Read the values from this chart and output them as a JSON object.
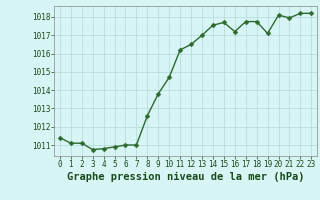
{
  "x": [
    0,
    1,
    2,
    3,
    4,
    5,
    6,
    7,
    8,
    9,
    10,
    11,
    12,
    13,
    14,
    15,
    16,
    17,
    18,
    19,
    20,
    21,
    22,
    23
  ],
  "y": [
    1011.4,
    1011.1,
    1011.1,
    1010.75,
    1010.8,
    1010.9,
    1011.0,
    1011.0,
    1012.6,
    1013.8,
    1014.7,
    1016.2,
    1016.5,
    1017.0,
    1017.55,
    1017.7,
    1017.2,
    1017.75,
    1017.75,
    1017.1,
    1018.1,
    1017.95,
    1018.2,
    1018.2
  ],
  "line_color": "#2d6a2d",
  "marker_color": "#2d6a2d",
  "background_color": "#d8f5f5",
  "grid_color": "#b8dede",
  "xlabel": "Graphe pression niveau de la mer (hPa)",
  "ylim": [
    1010.4,
    1018.6
  ],
  "xlim": [
    -0.5,
    23.5
  ],
  "yticks": [
    1011,
    1012,
    1013,
    1014,
    1015,
    1016,
    1017,
    1018
  ],
  "xticks": [
    0,
    1,
    2,
    3,
    4,
    5,
    6,
    7,
    8,
    9,
    10,
    11,
    12,
    13,
    14,
    15,
    16,
    17,
    18,
    19,
    20,
    21,
    22,
    23
  ],
  "xlabel_fontsize": 7.5,
  "tick_fontsize": 5.5,
  "marker_size": 2.5,
  "line_width": 1.0
}
